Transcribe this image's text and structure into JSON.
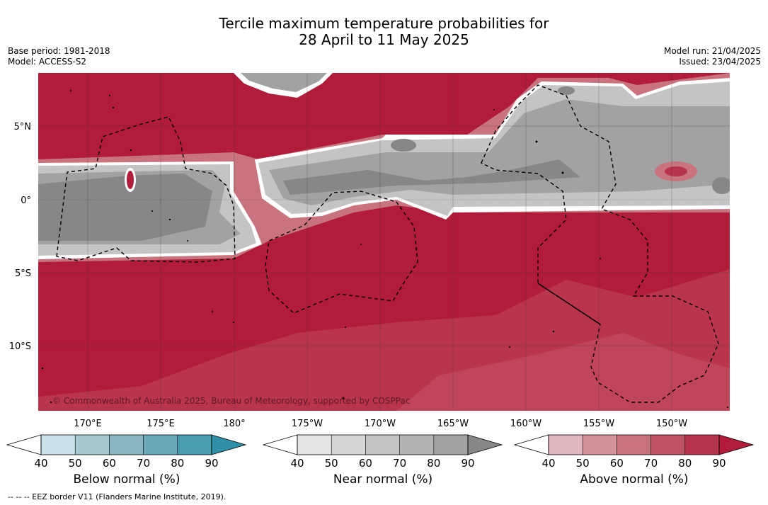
{
  "header": {
    "title_line1": "Tercile maximum temperature probabilities for",
    "title_line2": "28 April to 11 May 2025",
    "base_period": "Base period: 1981-2018",
    "model": "Model: ACCESS-S2",
    "model_run": "Model run: 21/04/2025",
    "issued": "Issued: 23/04/2025"
  },
  "map": {
    "lat_ticks": [
      "5°N",
      "0°",
      "5°S",
      "10°S"
    ],
    "lon_ticks": [
      "170°E",
      "175°E",
      "180°",
      "175°W",
      "170°W",
      "165°W",
      "160°W",
      "155°W",
      "150°W"
    ],
    "copyright": "© Commonwealth of Australia 2025, Bureau of Meteorology, supported by COSPPac",
    "colors": {
      "above_dominant": "#b01c39",
      "near_dominant": "#878787",
      "land_outline": "#000000",
      "eez_border": "#000000"
    }
  },
  "colorbars": [
    {
      "label": "Below normal (%)",
      "ticks": [
        "40",
        "50",
        "60",
        "70",
        "80",
        "90"
      ],
      "colors": [
        "#ffffff",
        "#c9e2e9",
        "#a6c7cf",
        "#8ab6c2",
        "#6aa9b8",
        "#4a9eb0",
        "#2f8fa7"
      ]
    },
    {
      "label": "Near normal (%)",
      "ticks": [
        "40",
        "50",
        "60",
        "70",
        "80",
        "90"
      ],
      "colors": [
        "#ffffff",
        "#e4e4e4",
        "#d4d4d4",
        "#c4c4c4",
        "#b3b3b3",
        "#a2a2a2",
        "#878787"
      ]
    },
    {
      "label": "Above normal (%)",
      "ticks": [
        "40",
        "50",
        "60",
        "70",
        "80",
        "90"
      ],
      "colors": [
        "#ffffff",
        "#e0b5bc",
        "#d4939c",
        "#c9737f",
        "#bf5365",
        "#b6354c",
        "#b01c39"
      ]
    }
  ],
  "footnote": "--  --  -- EEZ border V11 (Flanders Marine Institute, 2019)."
}
